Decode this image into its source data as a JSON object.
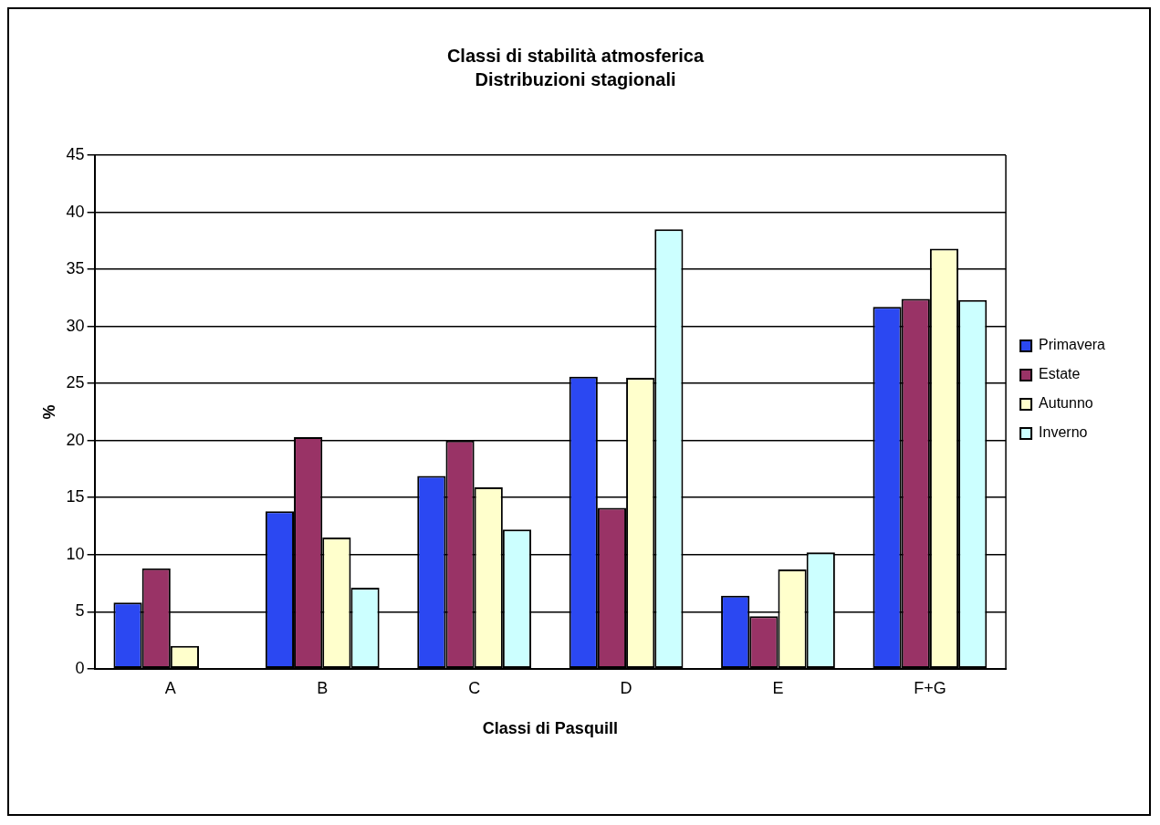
{
  "chart_data": {
    "type": "bar",
    "title": "Classi di stabilità atmosferica",
    "subtitle": "Distribuzioni stagionali",
    "xlabel": "Classi di Pasquill",
    "ylabel": "%",
    "categories": [
      "A",
      "B",
      "C",
      "D",
      "E",
      "F+G"
    ],
    "series": [
      {
        "name": "Primavera",
        "color": "#2b48f2",
        "values": [
          5.8,
          13.8,
          16.9,
          25.6,
          6.4,
          31.7
        ]
      },
      {
        "name": "Estate",
        "color": "#993366",
        "values": [
          8.8,
          20.3,
          20.0,
          14.1,
          4.6,
          32.4
        ]
      },
      {
        "name": "Autunno",
        "color": "#ffffcc",
        "values": [
          2.0,
          11.5,
          15.9,
          25.5,
          8.7,
          36.8
        ]
      },
      {
        "name": "Inverno",
        "color": "#ccffff",
        "values": [
          0,
          7.1,
          12.2,
          38.5,
          10.2,
          32.3
        ]
      }
    ],
    "ylim": [
      0,
      45
    ],
    "yticks": [
      0,
      5,
      10,
      15,
      20,
      25,
      30,
      35,
      40,
      45
    ],
    "grid": "y",
    "legend": "right"
  }
}
